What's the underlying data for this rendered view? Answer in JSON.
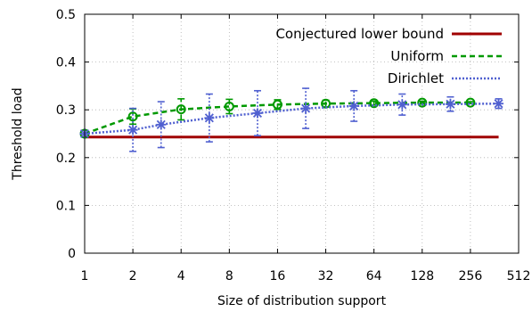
{
  "chart_data": {
    "type": "line",
    "title": "",
    "xlabel": "Size of distribution support",
    "ylabel": "Threshold load",
    "x_scale": "log2",
    "xlim": [
      1,
      512
    ],
    "ylim": [
      0,
      0.5
    ],
    "x_ticks": [
      1,
      2,
      4,
      8,
      16,
      32,
      64,
      128,
      256,
      512
    ],
    "x_tick_labels": [
      "1",
      "2",
      "4",
      "8",
      "16",
      "32",
      "64",
      "128",
      "256",
      "512"
    ],
    "y_ticks": [
      0,
      0.1,
      0.2,
      0.3,
      0.4,
      0.5
    ],
    "y_tick_labels": [
      "0",
      "0.1",
      "0.2",
      "0.3",
      "0.4",
      "0.5"
    ],
    "grid": true,
    "legend_position": "top-right",
    "series": [
      {
        "name": "Conjectured lower bound",
        "color": "#a00000",
        "style": "solid",
        "marker": "none",
        "x": [
          1,
          384
        ],
        "y": [
          0.243,
          0.243
        ]
      },
      {
        "name": "Uniform",
        "color": "#009900",
        "style": "dashed",
        "marker": "circle",
        "x": [
          1,
          2,
          4,
          8,
          16,
          32,
          64,
          128,
          256
        ],
        "y": [
          0.25,
          0.286,
          0.301,
          0.307,
          0.311,
          0.313,
          0.314,
          0.315,
          0.315
        ],
        "err": [
          0,
          0.016,
          0.022,
          0.015,
          0.01,
          0.007,
          0.004,
          0.003,
          0.002
        ]
      },
      {
        "name": "Dirichlet",
        "color": "#5060d0",
        "style": "dotted",
        "marker": "star",
        "x": [
          1,
          2,
          3,
          6,
          12,
          24,
          48,
          96,
          192,
          384
        ],
        "y": [
          0.25,
          0.258,
          0.269,
          0.283,
          0.293,
          0.303,
          0.308,
          0.311,
          0.312,
          0.313
        ],
        "err": [
          0,
          0.045,
          0.048,
          0.05,
          0.047,
          0.042,
          0.032,
          0.022,
          0.015,
          0.01
        ]
      }
    ]
  }
}
